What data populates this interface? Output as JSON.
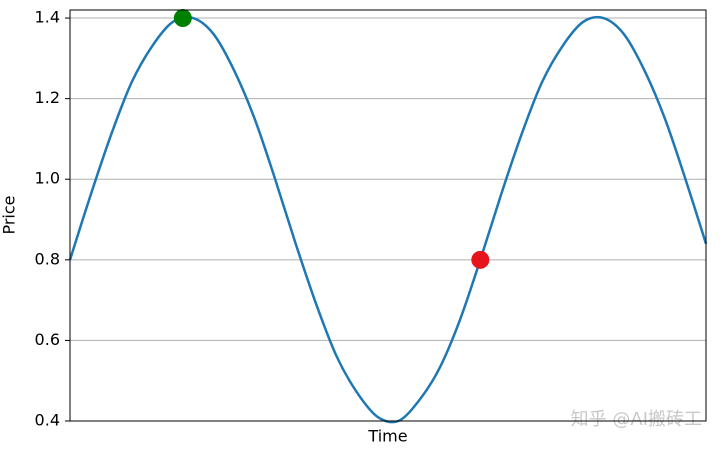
{
  "chart_data": {
    "type": "line",
    "xlabel": "Time",
    "ylabel": "Price",
    "x": [
      0,
      1,
      2,
      3,
      4,
      5,
      6,
      7,
      8,
      9,
      10,
      11,
      12,
      13,
      14,
      15,
      16,
      17,
      18,
      19,
      20,
      21,
      22,
      23,
      24,
      25,
      26,
      27,
      28,
      29,
      30,
      31
    ],
    "values": [
      0.8,
      0.96,
      1.11,
      1.24,
      1.33,
      1.39,
      1.4,
      1.36,
      1.27,
      1.15,
      1.0,
      0.84,
      0.69,
      0.56,
      0.47,
      0.41,
      0.4,
      0.45,
      0.53,
      0.65,
      0.8,
      0.96,
      1.11,
      1.24,
      1.33,
      1.39,
      1.4,
      1.36,
      1.27,
      1.15,
      1.0,
      0.84
    ],
    "color": "#1f77b4",
    "points": [
      {
        "x": 5.5,
        "y": 1.4,
        "color": "#008000"
      },
      {
        "x": 20,
        "y": 0.8,
        "color": "#e8141c"
      }
    ],
    "xlim": [
      0,
      31
    ],
    "ylim": [
      0.4,
      1.42
    ],
    "yticks": [
      0.4,
      0.6,
      0.8,
      {
        "value": 1,
        "label": "1.0"
      },
      1.2,
      1.4
    ],
    "grid": true,
    "watermark": "知乎 @AI搬砖工"
  }
}
